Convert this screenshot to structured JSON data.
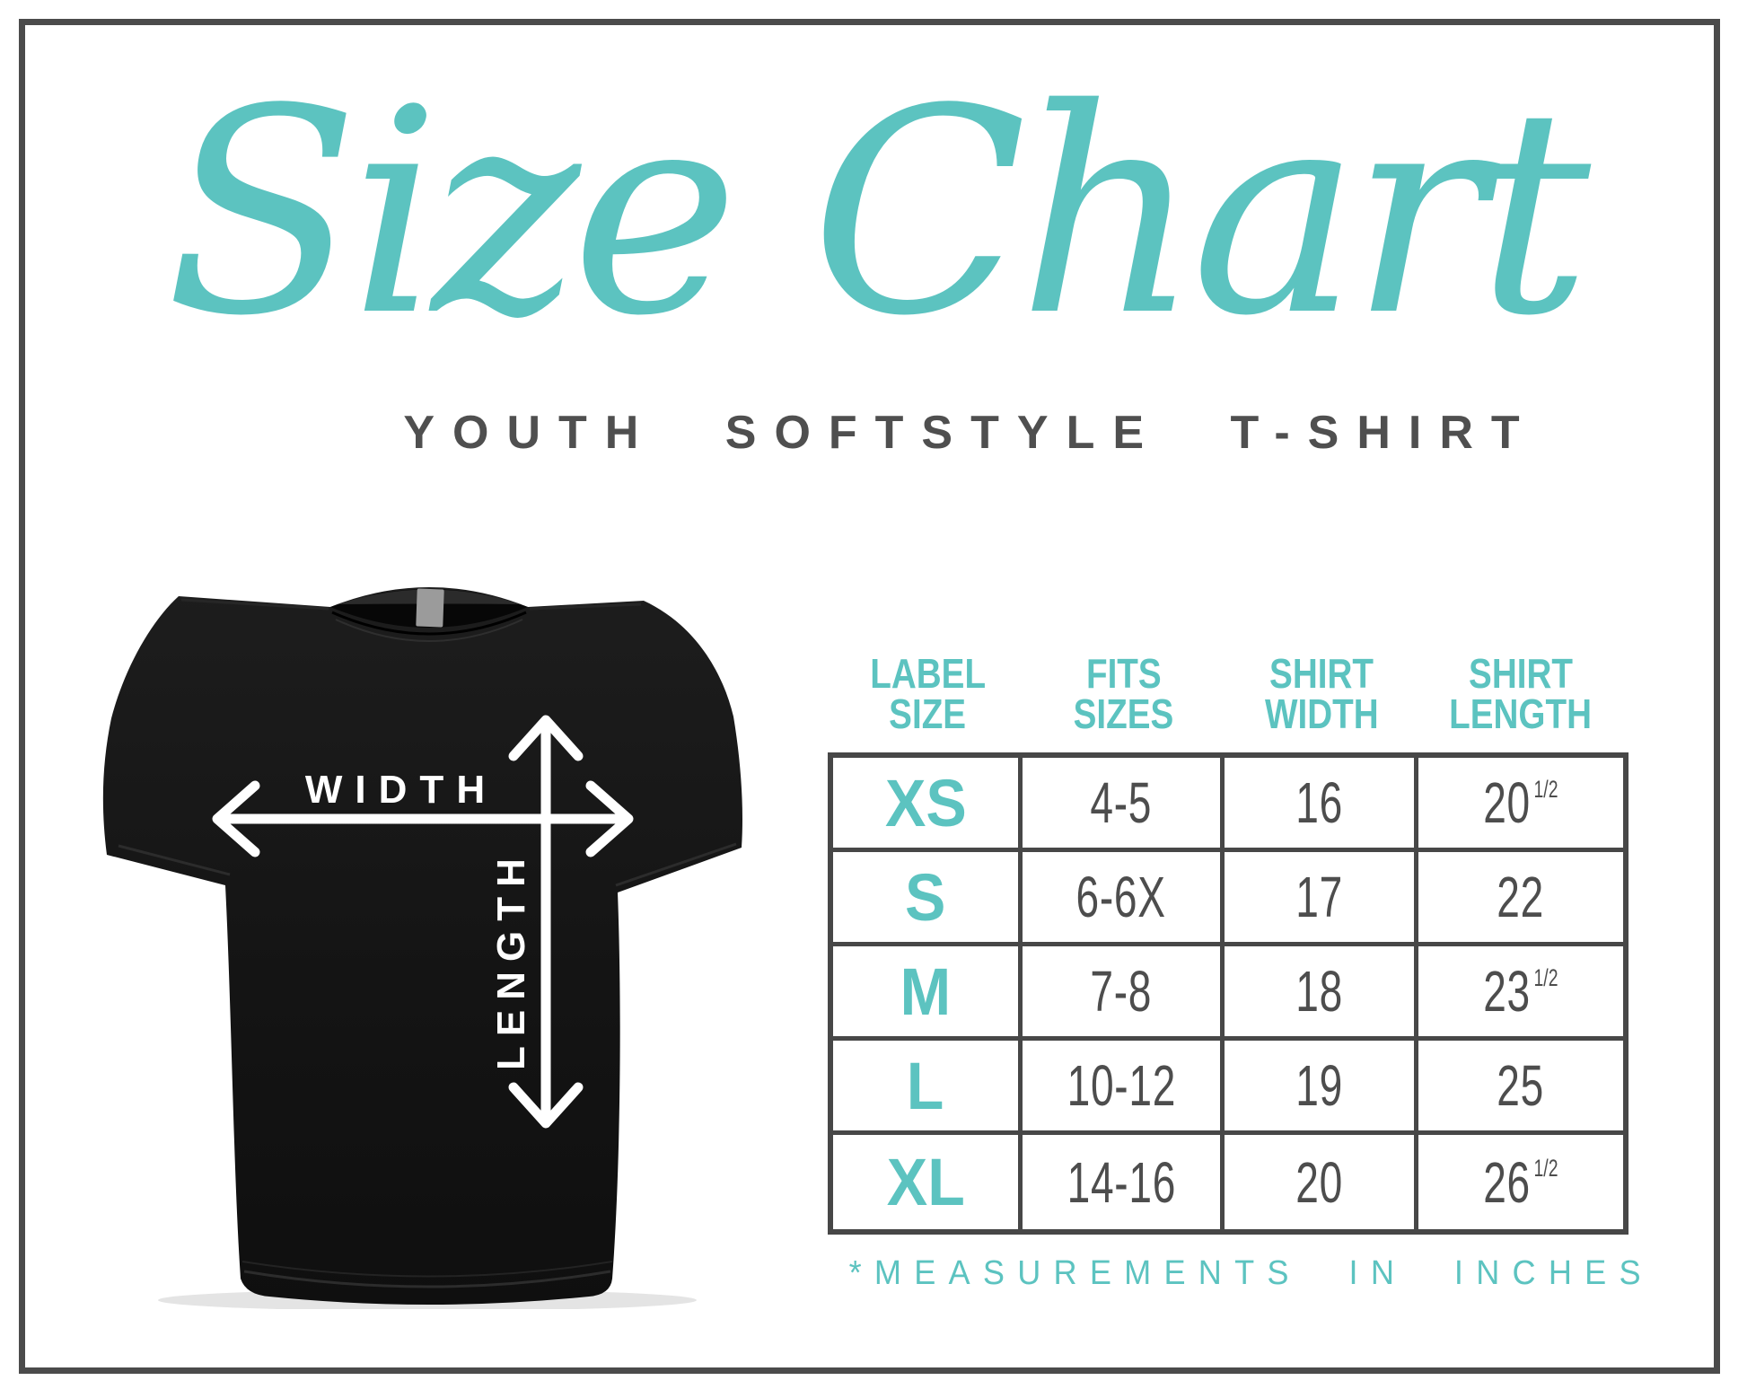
{
  "poster": {
    "title": "Size Chart",
    "subtitle": "YOUTH SOFTSTYLE T-SHIRT",
    "footnote": "*MEASUREMENTS IN INCHES"
  },
  "diagram": {
    "width_label": "WIDTH",
    "length_label": "LENGTH"
  },
  "colors": {
    "teal": "#5CC3C0",
    "text_dark": "#4D4D4D",
    "frame_border": "#4B4B4B",
    "table_border": "#474747",
    "shirt_black": "#161616",
    "arrow_white": "#FFFFFF"
  },
  "table": {
    "headers": [
      {
        "line1": "LABEL",
        "line2": "SIZE"
      },
      {
        "line1": "FITS",
        "line2": "SIZES"
      },
      {
        "line1": "SHIRT",
        "line2": "WIDTH"
      },
      {
        "line1": "SHIRT",
        "line2": "LENGTH"
      }
    ],
    "rows": [
      {
        "label": "XS",
        "fits": "4-5",
        "shirt_width": "16",
        "shirt_length": "20",
        "shirt_length_fraction": "1/2"
      },
      {
        "label": "S",
        "fits": "6-6X",
        "shirt_width": "17",
        "shirt_length": "22",
        "shirt_length_fraction": ""
      },
      {
        "label": "M",
        "fits": "7-8",
        "shirt_width": "18",
        "shirt_length": "23",
        "shirt_length_fraction": "1/2"
      },
      {
        "label": "L",
        "fits": "10-12",
        "shirt_width": "19",
        "shirt_length": "25",
        "shirt_length_fraction": ""
      },
      {
        "label": "XL",
        "fits": "14-16",
        "shirt_width": "20",
        "shirt_length": "26",
        "shirt_length_fraction": "1/2"
      }
    ]
  }
}
